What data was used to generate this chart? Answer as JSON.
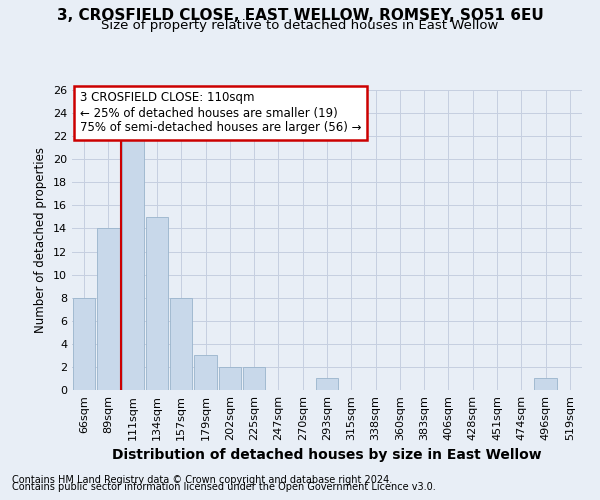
{
  "title1": "3, CROSFIELD CLOSE, EAST WELLOW, ROMSEY, SO51 6EU",
  "title2": "Size of property relative to detached houses in East Wellow",
  "xlabel": "Distribution of detached houses by size in East Wellow",
  "ylabel": "Number of detached properties",
  "footer1": "Contains HM Land Registry data © Crown copyright and database right 2024.",
  "footer2": "Contains public sector information licensed under the Open Government Licence v3.0.",
  "categories": [
    "66sqm",
    "89sqm",
    "111sqm",
    "134sqm",
    "157sqm",
    "179sqm",
    "202sqm",
    "225sqm",
    "247sqm",
    "270sqm",
    "293sqm",
    "315sqm",
    "338sqm",
    "360sqm",
    "383sqm",
    "406sqm",
    "428sqm",
    "451sqm",
    "474sqm",
    "496sqm",
    "519sqm"
  ],
  "values": [
    8,
    14,
    22,
    15,
    8,
    3,
    2,
    2,
    0,
    0,
    1,
    0,
    0,
    0,
    0,
    0,
    0,
    0,
    0,
    1,
    0
  ],
  "bar_color": "#c8d8ea",
  "bar_edge_color": "#9ab4cc",
  "grid_color": "#c5cfe0",
  "vline_x_index": 2,
  "vline_color": "#cc0000",
  "annotation_line1": "3 CROSFIELD CLOSE: 110sqm",
  "annotation_line2": "← 25% of detached houses are smaller (19)",
  "annotation_line3": "75% of semi-detached houses are larger (56) →",
  "annotation_box_color": "#ffffff",
  "annotation_box_edge": "#cc0000",
  "ylim": [
    0,
    26
  ],
  "yticks": [
    0,
    2,
    4,
    6,
    8,
    10,
    12,
    14,
    16,
    18,
    20,
    22,
    24,
    26
  ],
  "bg_color": "#e8eef6",
  "title1_fontsize": 11,
  "title2_fontsize": 9.5,
  "ylabel_fontsize": 8.5,
  "xlabel_fontsize": 10,
  "tick_fontsize": 8,
  "footer_fontsize": 7
}
